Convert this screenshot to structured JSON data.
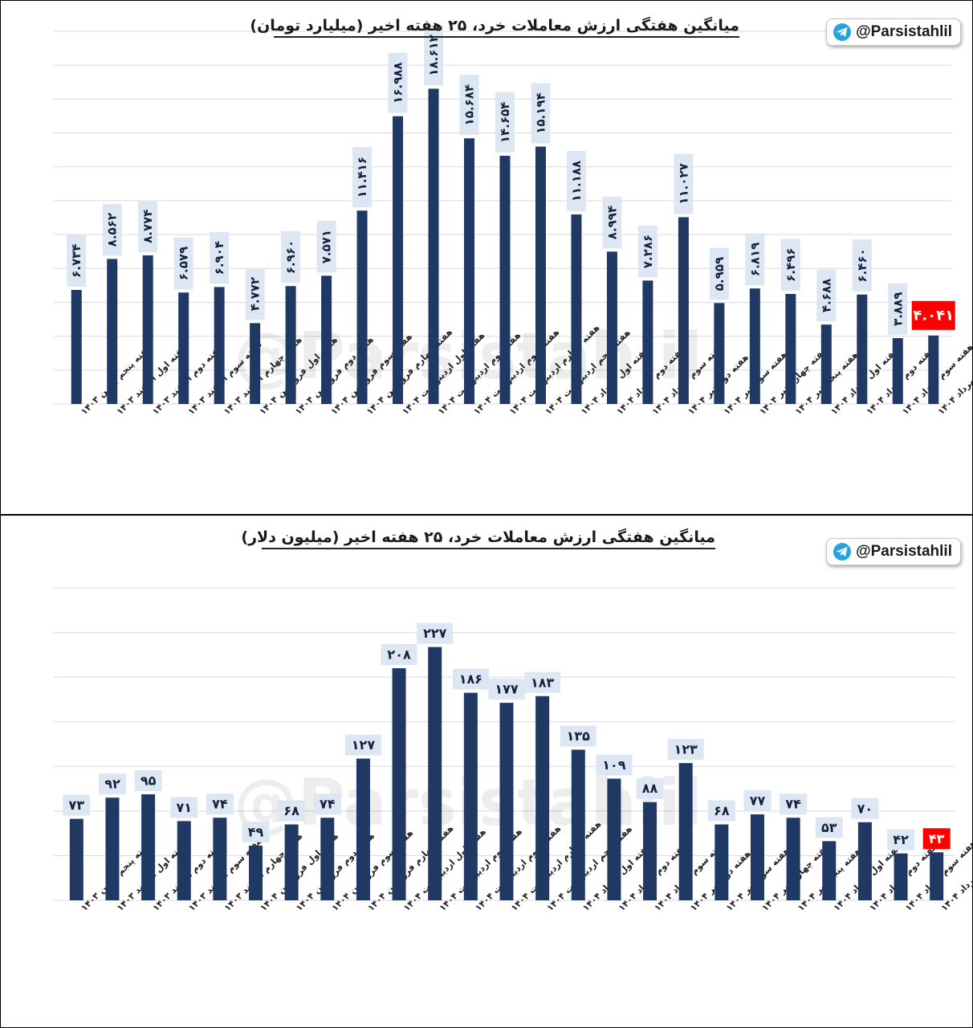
{
  "chart_data": [
    {
      "type": "bar",
      "title": "میانگین هفتگی ارزش معاملات خرد، ۲۵ هفته اخیر (میلیارد تومان)",
      "ylim": [
        0,
        22
      ],
      "grid": true,
      "bar_color": "#1f3864",
      "highlight_color": "#ff0000",
      "label_bg": "#dde7f3",
      "categories": [
        "هفته پنجم بهمن ۱۴۰۳",
        "هفته اول اسفند ۱۴۰۳",
        "هفته دوم اسفند ۱۴۰۳",
        "هفته سوم اسفند ۱۴۰۳",
        "هفته چهارم اسفند ۱۴۰۳",
        "هفته اول فروردین ۱۴۰۴",
        "هفته دوم فروردین ۱۴۰۴",
        "هفته سوم فروردین ۱۴۰۴",
        "هفته چهارم فروردین ۱۴۰۴",
        "هفته اول اردیبهشت ۱۴۰۴",
        "هفته دوم اردیبهشت ۱۴۰۴",
        "هفته سوم اردیبهشت ۱۴۰۴",
        "هفته چهارم اردیبهشت ۱۴۰۴",
        "هفته پنجم اردیبهشت ۱۴۰۴",
        "هفته اول خرداد ۱۴۰۴",
        "هفته دوم خرداد ۱۴۰۴",
        "هفته سوم خرداد ۱۴۰۴",
        "هفته دوم تیر ۱۴۰۴",
        "هفته سوم تیر ۱۴۰۴",
        "هفته چهارم تیر ۱۴۰۴",
        "هفته پنجم تیر ۱۴۰۴",
        "هفته اول مرداد ۱۴۰۴",
        "هفته دوم مرداد ۱۴۰۴",
        "هفته سوم مرداد ۱۴۰۴",
        "هفته چهارم مرداد ۱۴۰۴"
      ],
      "values": [
        6.734,
        8.562,
        8.774,
        6.579,
        6.904,
        4.772,
        6.96,
        7.571,
        11.416,
        16.988,
        18.612,
        15.684,
        14.654,
        15.194,
        11.188,
        8.994,
        7.286,
        11.027,
        5.959,
        6.819,
        6.496,
        4.688,
        6.46,
        3.889,
        4.041
      ],
      "labels": [
        "۶.۷۳۴",
        "۸.۵۶۲",
        "۸.۷۷۴",
        "۶.۵۷۹",
        "۶.۹۰۴",
        "۴.۷۷۲",
        "۶.۹۶۰",
        "۷.۵۷۱",
        "۱۱.۴۱۶",
        "۱۶.۹۸۸",
        "۱۸.۶۱۲",
        "۱۵.۶۸۴",
        "۱۴.۶۵۴",
        "۱۵.۱۹۴",
        "۱۱.۱۸۸",
        "۸.۹۹۴",
        "۷.۲۸۶",
        "۱۱.۰۲۷",
        "۵.۹۵۹",
        "۶.۸۱۹",
        "۶.۴۹۶",
        "۴.۶۸۸",
        "۶.۴۶۰",
        "۳.۸۸۹",
        "۴.۰۴۱"
      ],
      "highlight_index": 24
    },
    {
      "type": "bar",
      "title": "میانگین هفتگی ارزش معاملات خرد، ۲۵ هفته اخیر (میلیون دلار)",
      "ylim": [
        0,
        280
      ],
      "grid": true,
      "bar_color": "#1f3864",
      "highlight_color": "#ff0000",
      "label_bg": "#dde7f3",
      "categories": [
        "هفته پنجم بهمن ۱۴۰۳",
        "هفته اول اسفند ۱۴۰۳",
        "هفته دوم اسفند ۱۴۰۳",
        "هفته سوم اسفند ۱۴۰۳",
        "هفته چهارم اسفند ۱۴۰۳",
        "هفته اول فروردین ۱۴۰۴",
        "هفته دوم فروردین ۱۴۰۴",
        "هفته سوم فروردین ۱۴۰۴",
        "هفته چهارم فروردین ۱۴۰۴",
        "هفته اول اردیبهشت ۱۴۰۴",
        "هفته دوم اردیبهشت ۱۴۰۴",
        "هفته سوم اردیبهشت ۱۴۰۴",
        "هفته چهارم اردیبهشت ۱۴۰۴",
        "هفته پنجم اردیبهشت ۱۴۰۴",
        "هفته اول خرداد ۱۴۰۴",
        "هفته دوم خرداد ۱۴۰۴",
        "هفته سوم خرداد ۱۴۰۴",
        "هفته دوم تیر ۱۴۰۴",
        "هفته سوم تیر ۱۴۰۴",
        "هفته چهارم تیر ۱۴۰۴",
        "هفته پنجم تیر ۱۴۰۴",
        "هفته اول مرداد ۱۴۰۴",
        "هفته دوم مرداد ۱۴۰۴",
        "هفته سوم مرداد ۱۴۰۴",
        "هفته چهارم مرداد ۱۴۰۴"
      ],
      "values": [
        73,
        92,
        95,
        71,
        74,
        49,
        68,
        74,
        127,
        208,
        227,
        186,
        177,
        183,
        135,
        109,
        88,
        123,
        68,
        77,
        74,
        53,
        70,
        42,
        43
      ],
      "labels": [
        "۷۳",
        "۹۲",
        "۹۵",
        "۷۱",
        "۷۴",
        "۴۹",
        "۶۸",
        "۷۴",
        "۱۲۷",
        "۲۰۸",
        "۲۲۷",
        "۱۸۶",
        "۱۷۷",
        "۱۸۳",
        "۱۳۵",
        "۱۰۹",
        "۸۸",
        "۱۲۳",
        "۶۸",
        "۷۷",
        "۷۴",
        "۵۳",
        "۷۰",
        "۴۲",
        "۴۳"
      ],
      "highlight_index": 24
    }
  ],
  "badge": {
    "handle": "@Parsistahlil",
    "icon": "telegram-icon",
    "color": "#2aa3dd"
  },
  "watermark": "@Parsistahlil"
}
